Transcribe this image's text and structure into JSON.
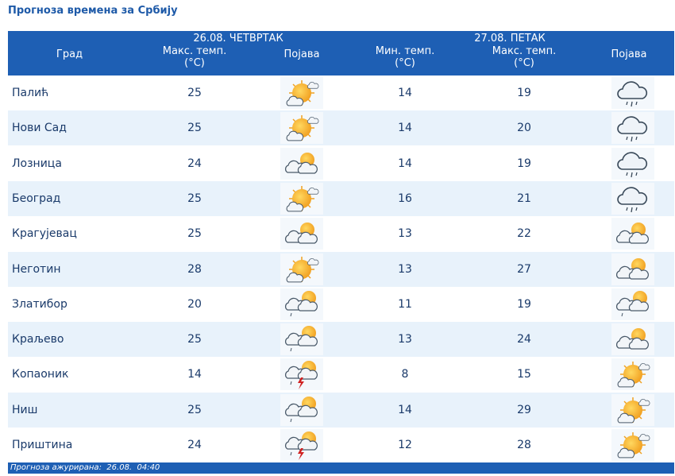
{
  "header": {
    "title": "Прогноза времена за Србију",
    "day1": "26.08. ЧЕТВРТАК",
    "day2": "27.08. ПЕТАК",
    "columns": [
      {
        "label": "Град"
      },
      {
        "label": "Макс. темп.",
        "unit": "(°C)"
      },
      {
        "label": "Појава"
      },
      {
        "label": "Мин. темп.",
        "unit": "(°C)"
      },
      {
        "label": "Макс. темп.",
        "unit": "(°C)"
      },
      {
        "label": "Појава"
      }
    ]
  },
  "table": {
    "rows": [
      [
        "Палић",
        25,
        14,
        19
      ],
      [
        "Нови Сад",
        25,
        14,
        20
      ],
      [
        "Лозница",
        24,
        14,
        19
      ],
      [
        "Београд",
        25,
        16,
        21
      ],
      [
        "Крагујевац",
        25,
        13,
        22
      ],
      [
        "Неготин",
        28,
        13,
        27
      ],
      [
        "Златибор",
        20,
        11,
        19
      ],
      [
        "Краљево",
        25,
        13,
        24
      ],
      [
        "Копаоник",
        14,
        8,
        15
      ],
      [
        "Ниш",
        25,
        14,
        29
      ],
      [
        "Приштина",
        24,
        12,
        28
      ]
    ]
  },
  "footer": {
    "label": "Прогноза ажурирана:",
    "date": "26.08.",
    "time": "04:40"
  }
}
